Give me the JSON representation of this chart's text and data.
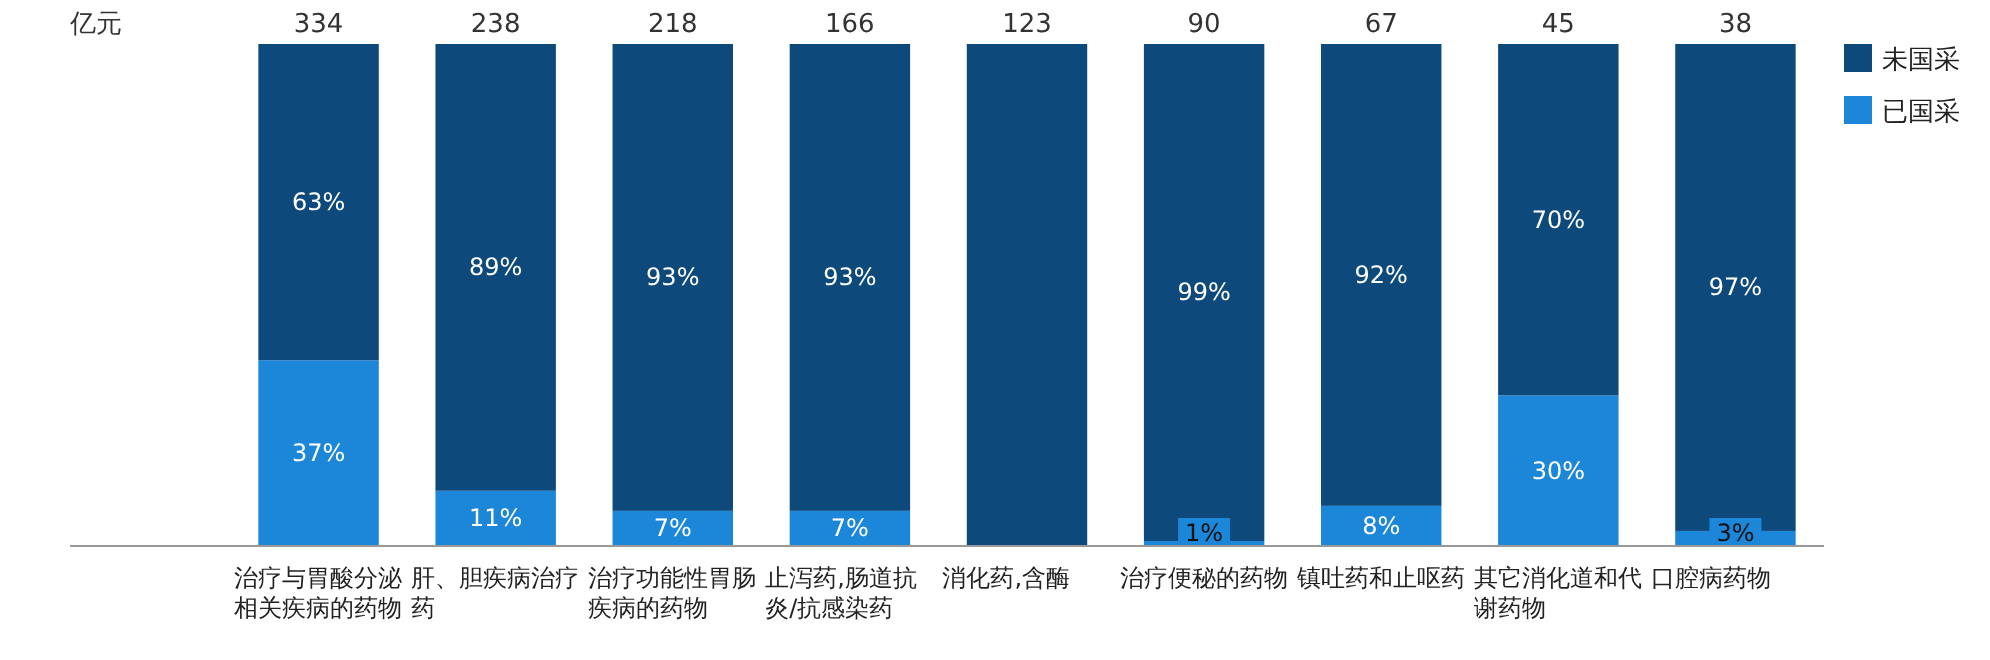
{
  "chart_data": {
    "type": "bar",
    "stacked": true,
    "legend": "top right",
    "categories": [
      "治疗与胃酸分泌相关疾病的药物",
      "肝、胆疾病治疗药",
      "治疗功能性胃肠疾病的药物",
      "止泻药,肠道抗炎/抗感染药",
      "消化药,含酶",
      "治疗便秘的药物",
      "镇吐药和止呕药",
      "其它消化道和代谢药物",
      "口腔病药物"
    ],
    "series": [
      {
        "name": "已国采",
        "color": "#1c86d9",
        "values": [
          37,
          11,
          7,
          7,
          0,
          1,
          8,
          30,
          3
        ],
        "value_labels": [
          "37%",
          "11%",
          "7%",
          "7%",
          null,
          "1%",
          "8%",
          "30%",
          "3%"
        ]
      },
      {
        "name": "未国采",
        "color": "#0d4a7b",
        "values": [
          63,
          89,
          93,
          93,
          100,
          99,
          92,
          70,
          97
        ],
        "value_labels": [
          "63%",
          "89%",
          "93%",
          "93%",
          null,
          "99%",
          "92%",
          "70%",
          "97%"
        ]
      }
    ],
    "annotations": [
      "亿元",
      "334",
      "238",
      "218",
      "166",
      "123",
      "90",
      "67",
      "45",
      "38"
    ]
  }
}
